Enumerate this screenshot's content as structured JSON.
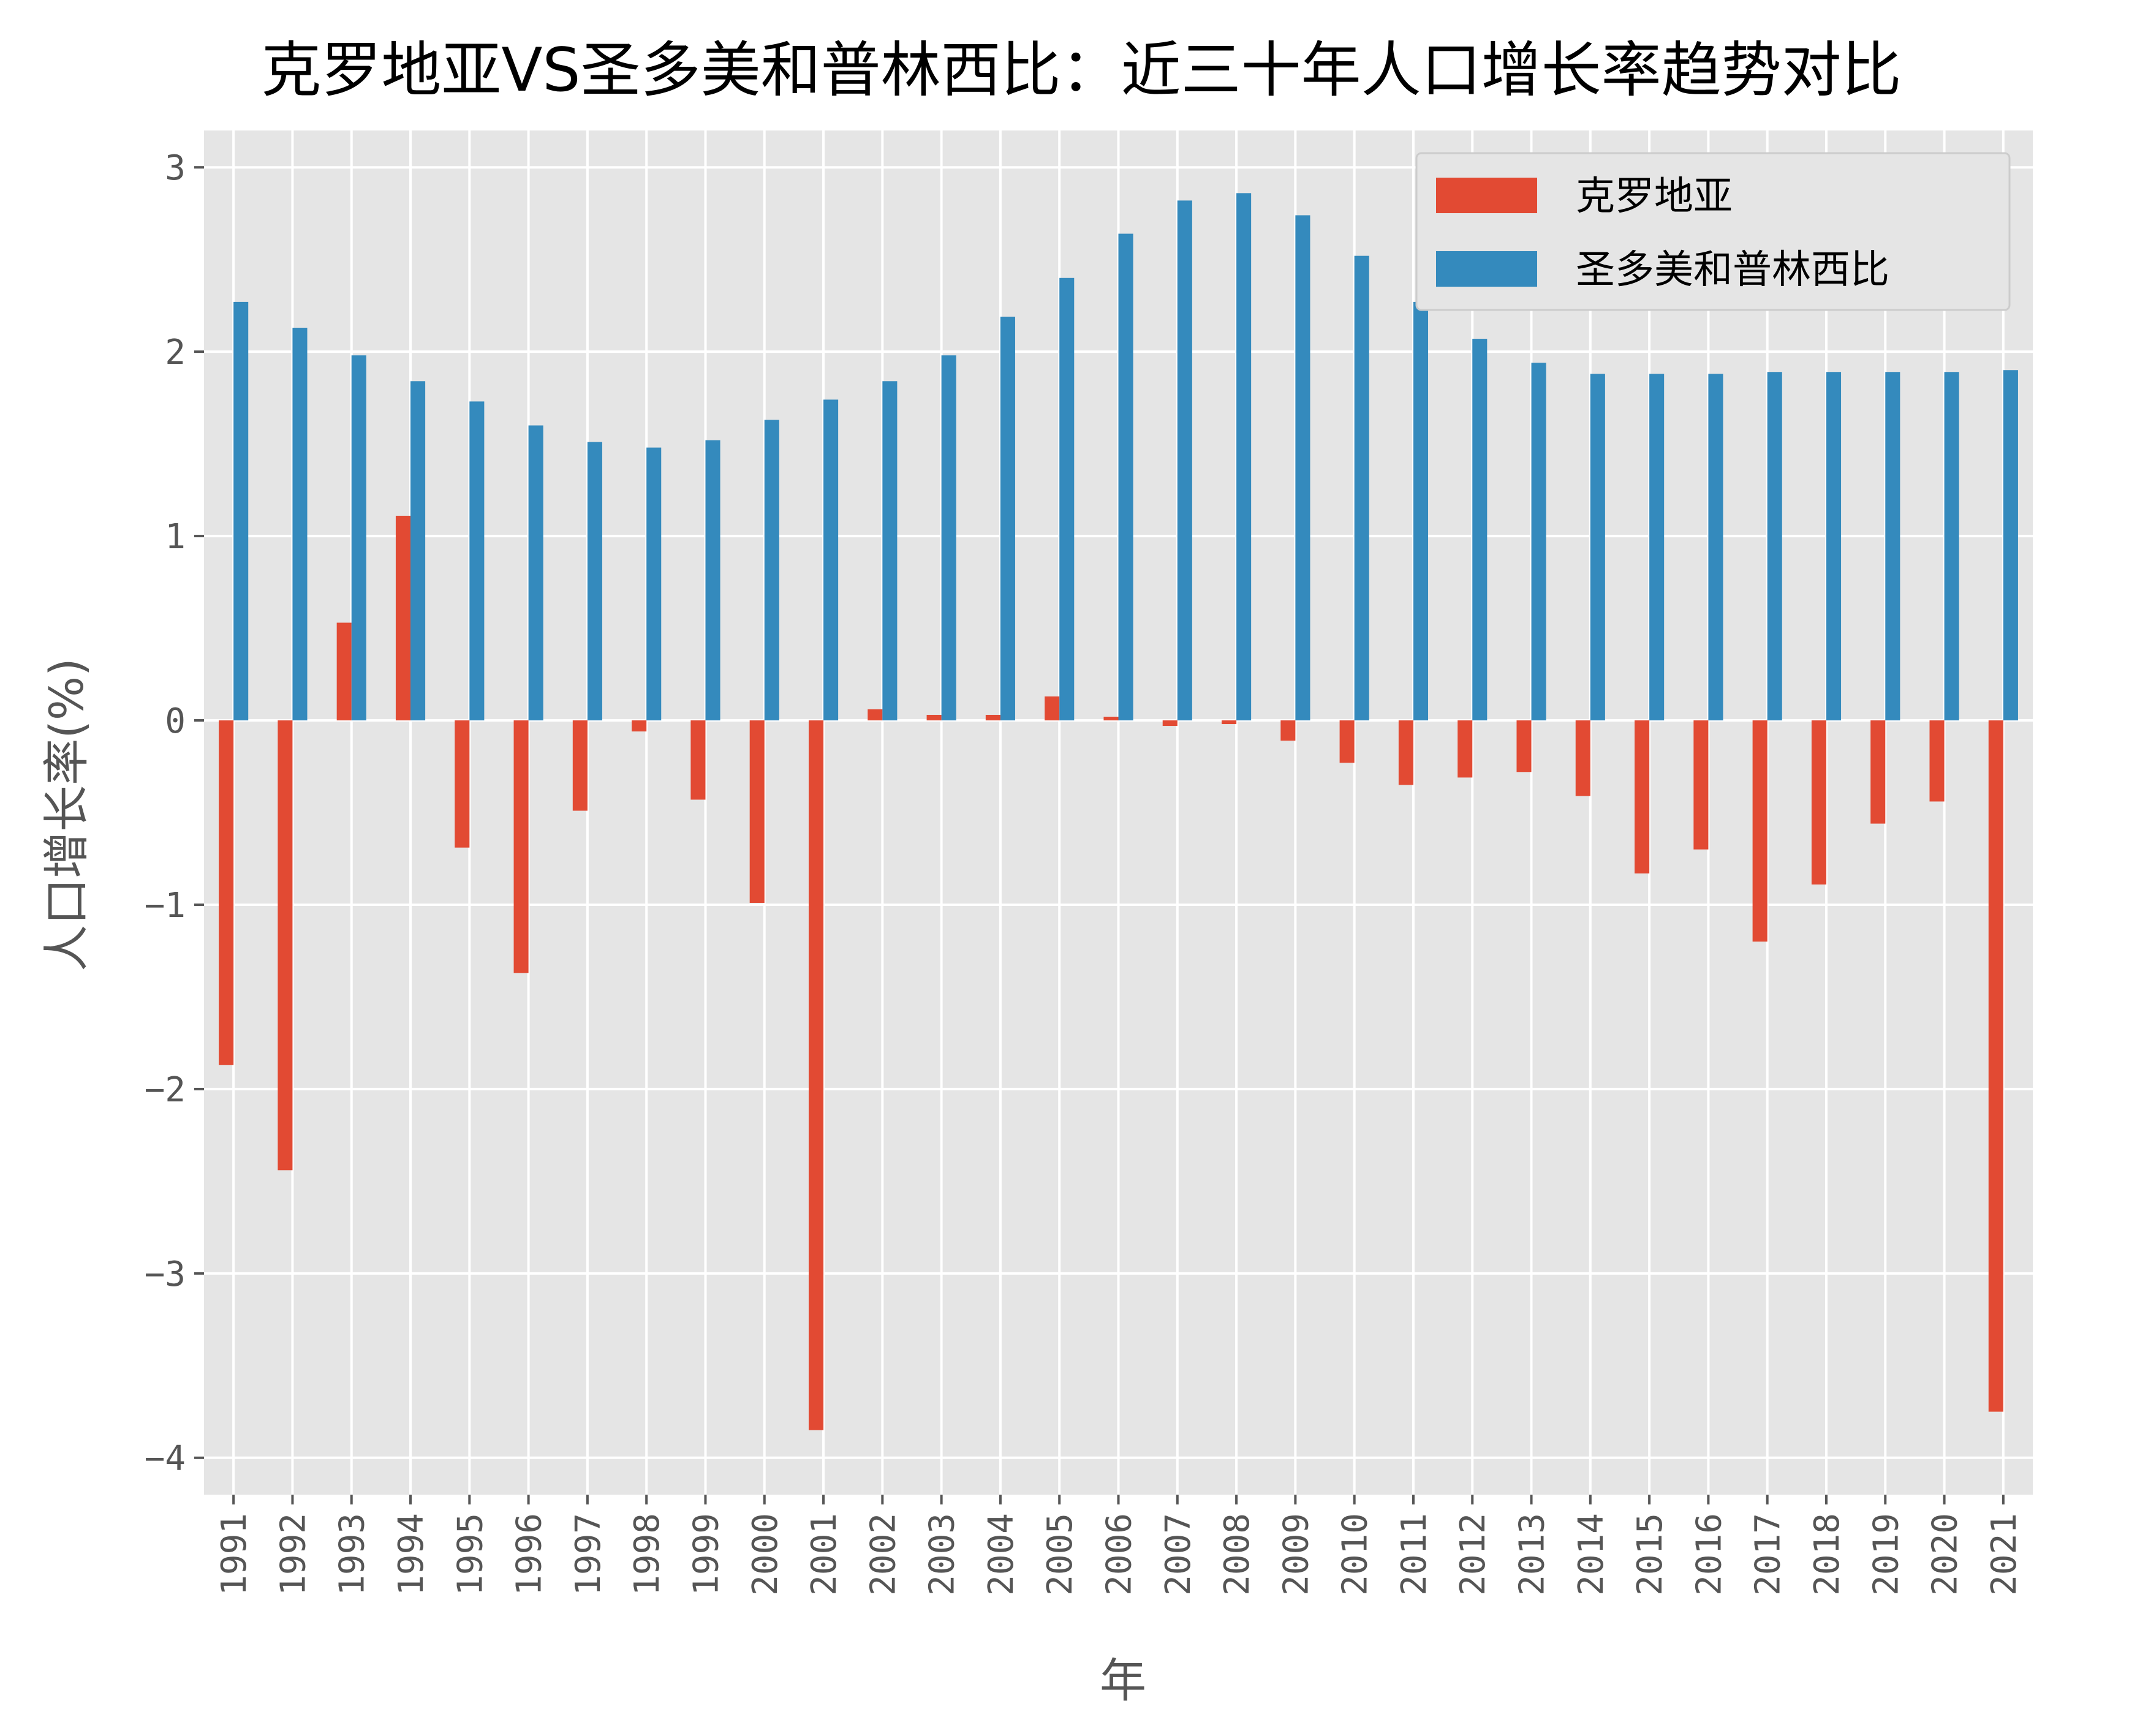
{
  "chart_data": {
    "type": "bar",
    "title": "克罗地亚VS圣多美和普林西比：近三十年人口增长率趋势对比",
    "xlabel": "年",
    "ylabel": "人口增长率(%)",
    "ylim": [
      -4.2,
      3.2
    ],
    "yticks": [
      3,
      2,
      1,
      0,
      -1,
      -2,
      -3,
      -4
    ],
    "ytick_labels": [
      "3",
      "2",
      "1",
      "0",
      "−1",
      "−2",
      "−3",
      "−4"
    ],
    "grid": true,
    "legend_position": "top-right",
    "categories": [
      "1991",
      "1992",
      "1993",
      "1994",
      "1995",
      "1996",
      "1997",
      "1998",
      "1999",
      "2000",
      "2001",
      "2002",
      "2003",
      "2004",
      "2005",
      "2006",
      "2007",
      "2008",
      "2009",
      "2010",
      "2011",
      "2012",
      "2013",
      "2014",
      "2015",
      "2016",
      "2017",
      "2018",
      "2019",
      "2020",
      "2021"
    ],
    "series": [
      {
        "name": "克罗地亚",
        "color": "#E24A33",
        "values": [
          -1.87,
          -2.44,
          0.53,
          1.11,
          -0.69,
          -1.37,
          -0.49,
          -0.06,
          -0.43,
          -0.99,
          -3.85,
          0.06,
          0.03,
          0.03,
          0.13,
          0.02,
          -0.03,
          -0.02,
          -0.11,
          -0.23,
          -0.35,
          -0.31,
          -0.28,
          -0.41,
          -0.83,
          -0.7,
          -1.2,
          -0.89,
          -0.56,
          -0.44,
          -3.75
        ]
      },
      {
        "name": "圣多美和普林西比",
        "color": "#348ABD",
        "values": [
          2.27,
          2.13,
          1.98,
          1.84,
          1.73,
          1.6,
          1.51,
          1.48,
          1.52,
          1.63,
          1.74,
          1.84,
          1.98,
          2.19,
          2.4,
          2.64,
          2.82,
          2.86,
          2.74,
          2.52,
          2.27,
          2.07,
          1.94,
          1.88,
          1.88,
          1.88,
          1.89,
          1.89,
          1.89,
          1.89,
          1.9
        ]
      }
    ]
  }
}
